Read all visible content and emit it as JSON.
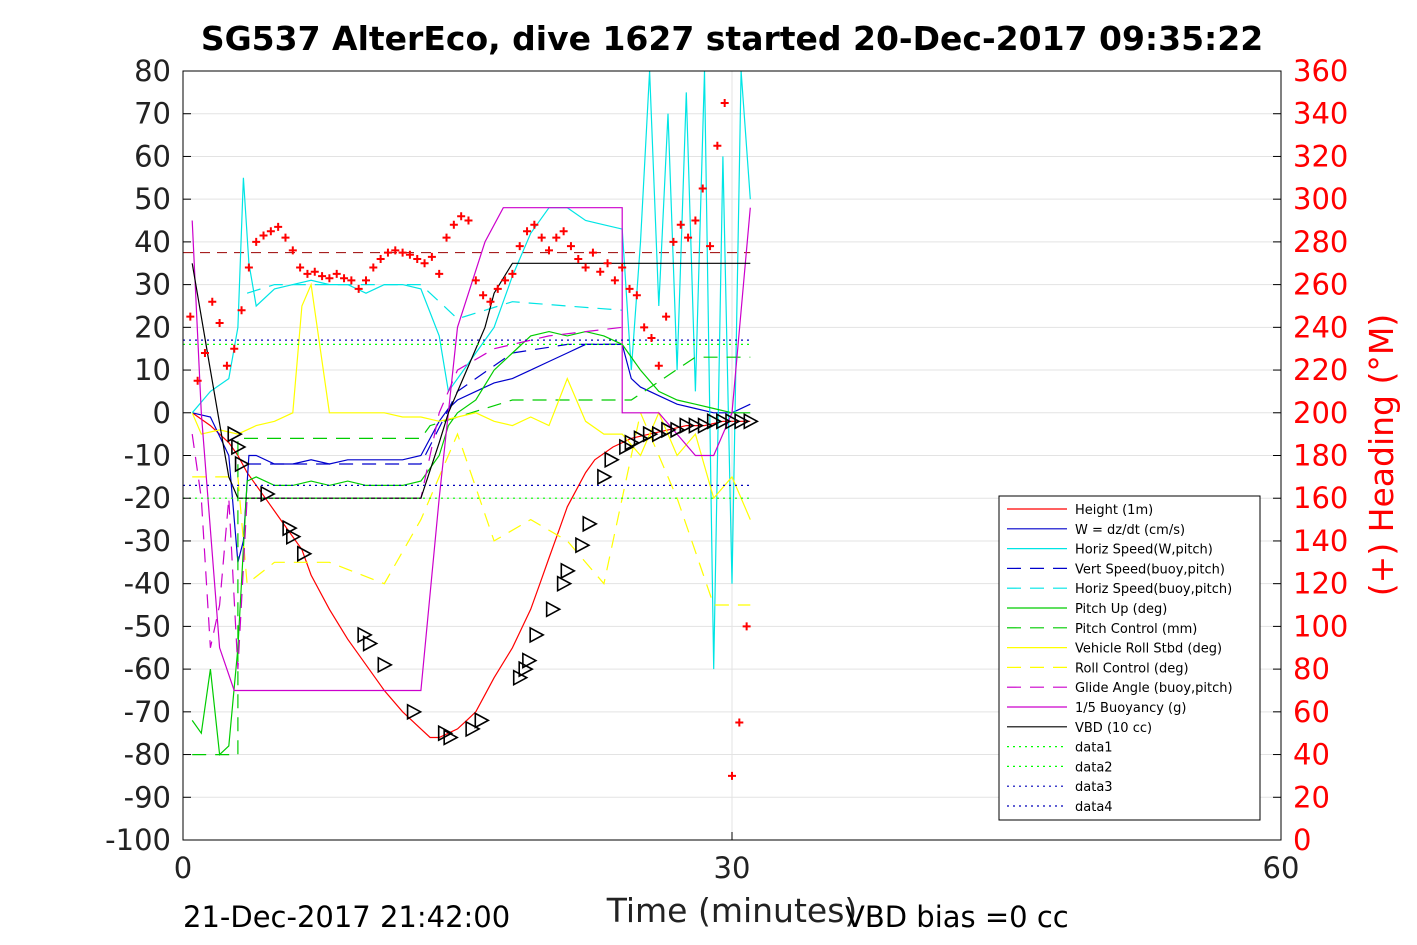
{
  "chart_data": {
    "type": "line",
    "title": "SG537 AlterEco, dive 1627 started 20-Dec-2017 09:35:22",
    "xlabel": "Time (minutes)",
    "ylabel_right": "(+) Heading (°M)",
    "footer_left": "21-Dec-2017 21:42:00",
    "footer_right": "VBD bias =0 cc",
    "xlim": [
      0,
      60
    ],
    "ylim": [
      -100,
      80
    ],
    "y2lim": [
      0,
      360
    ],
    "x_ticks": [
      "0",
      "30",
      "60"
    ],
    "y_ticks": [
      "80",
      "70",
      "60",
      "50",
      "40",
      "30",
      "20",
      "10",
      "0",
      "-10",
      "-20",
      "-30",
      "-40",
      "-50",
      "-60",
      "-70",
      "-80",
      "-90",
      "-100"
    ],
    "y2_ticks": [
      "360",
      "340",
      "320",
      "300",
      "280",
      "260",
      "240",
      "220",
      "200",
      "180",
      "160",
      "140",
      "120",
      "100",
      "80",
      "60",
      "40",
      "20",
      "0"
    ],
    "grid": true,
    "legend_position": "bottom-right",
    "colors": {
      "red": "#ff0000",
      "blue": "#0000cc",
      "cyan": "#00e5e5",
      "green": "#00cc00",
      "yellow": "#ffff00",
      "magenta": "#cc00cc",
      "black": "#000000",
      "lightgreen": "#00ff00",
      "navy": "#0000bb",
      "darkred": "#990000"
    },
    "legend": [
      {
        "label": "Height (1m)",
        "color": "#ff0000",
        "style": "solid"
      },
      {
        "label": "W = dz/dt (cm/s)",
        "color": "#0000cc",
        "style": "solid"
      },
      {
        "label": "Horiz Speed(W,pitch)",
        "color": "#00e5e5",
        "style": "solid"
      },
      {
        "label": "Vert Speed(buoy,pitch)",
        "color": "#0000cc",
        "style": "dashed"
      },
      {
        "label": "Horiz Speed(buoy,pitch)",
        "color": "#00e5e5",
        "style": "dashed"
      },
      {
        "label": "Pitch Up (deg)",
        "color": "#00cc00",
        "style": "solid"
      },
      {
        "label": "Pitch Control (mm)",
        "color": "#00cc00",
        "style": "dashed"
      },
      {
        "label": "Vehicle Roll Stbd (deg)",
        "color": "#ffff00",
        "style": "solid"
      },
      {
        "label": "Roll Control (deg)",
        "color": "#ffff00",
        "style": "dashed"
      },
      {
        "label": "Glide Angle (buoy,pitch)",
        "color": "#cc00cc",
        "style": "dashed"
      },
      {
        "label": "1/5 Buoyancy (g)",
        "color": "#cc00cc",
        "style": "solid"
      },
      {
        "label": "VBD (10 cc)",
        "color": "#000000",
        "style": "solid"
      },
      {
        "label": "data1",
        "color": "#00ff00",
        "style": "dotted"
      },
      {
        "label": "data2",
        "color": "#00ff00",
        "style": "dotted"
      },
      {
        "label": "data3",
        "color": "#0000bb",
        "style": "dotted"
      },
      {
        "label": "data4",
        "color": "#0000bb",
        "style": "dotted"
      }
    ],
    "series": [
      {
        "name": "Height (1m)",
        "color": "#ff0000",
        "style": "solid",
        "x": [
          0.5,
          1.5,
          2.5,
          3.0,
          3.5,
          4.5,
          5.5,
          6.5,
          7.0,
          8.0,
          9.0,
          10.0,
          11.0,
          12.0,
          13.0,
          13.5,
          14.0,
          14.5,
          15.0,
          15.5,
          16.0,
          16.5,
          17.0,
          18.0,
          19.0,
          19.5,
          20.0,
          20.5,
          21.0,
          22.0,
          22.5,
          23.5,
          24.5,
          25.5,
          26.5,
          27.5,
          28.5,
          29.5,
          30.5,
          31.0
        ],
        "y": [
          0,
          -3,
          -7,
          -10,
          -14,
          -20,
          -26,
          -32,
          -38,
          -46,
          -53,
          -59,
          -65,
          -70,
          -74,
          -76,
          -76,
          -75,
          -74,
          -72,
          -70,
          -66,
          -62,
          -55,
          -46,
          -40,
          -34,
          -28,
          -22,
          -14,
          -11,
          -8,
          -6,
          -5,
          -4,
          -3,
          -3,
          -2,
          -2,
          -2
        ]
      },
      {
        "name": "W = dz/dt (cm/s)",
        "color": "#0000cc",
        "style": "solid",
        "x": [
          0.5,
          1.5,
          2.5,
          3.0,
          3.3,
          3.6,
          4.0,
          5.0,
          6.0,
          7.0,
          8.0,
          9.0,
          10.0,
          11.0,
          12.0,
          13.0,
          14.0,
          14.5,
          15.0,
          16.0,
          17.0,
          18.0,
          19.0,
          20.0,
          21.0,
          22.0,
          23.0,
          24.0,
          24.5,
          25.0,
          26.0,
          27.0,
          28.0,
          29.0,
          30.0,
          31.0
        ],
        "y": [
          0,
          -1,
          -10,
          -35,
          -30,
          -10,
          -10,
          -12,
          -12,
          -11,
          -12,
          -11,
          -11,
          -11,
          -11,
          -10,
          -2,
          1,
          3,
          5,
          7,
          8,
          10,
          12,
          14,
          16,
          16,
          16,
          8,
          6,
          4,
          2,
          1,
          0,
          0,
          2
        ]
      },
      {
        "name": "Horiz Speed(W,pitch)",
        "color": "#00e5e5",
        "style": "solid",
        "x": [
          0.5,
          1.5,
          2.5,
          3.0,
          3.3,
          3.6,
          4.0,
          5.0,
          6.0,
          7.0,
          8.0,
          9.0,
          10.0,
          11.0,
          12.0,
          13.0,
          14.0,
          14.5,
          15.0,
          16.0,
          17.0,
          18.0,
          19.0,
          20.0,
          21.0,
          22.0,
          23.0,
          24.0,
          24.5,
          25.0,
          25.5,
          26.0,
          26.5,
          27.0,
          27.5,
          28.0,
          28.5,
          29.0,
          29.5,
          30.0,
          30.5,
          31.0
        ],
        "y": [
          0,
          5,
          8,
          20,
          55,
          35,
          25,
          29,
          30,
          31,
          30,
          30,
          28,
          30,
          30,
          29,
          18,
          5,
          8,
          14,
          20,
          32,
          42,
          48,
          48,
          45,
          44,
          43,
          10,
          40,
          80,
          25,
          70,
          10,
          75,
          5,
          80,
          -60,
          60,
          -40,
          80,
          50
        ]
      },
      {
        "name": "Vert Speed(buoy,pitch)",
        "color": "#0000cc",
        "style": "dashed",
        "x": [
          3.5,
          5.0,
          8.0,
          11.0,
          13.0,
          15.0,
          18.0,
          21.0,
          24.0
        ],
        "y": [
          -12,
          -12,
          -12,
          -12,
          -12,
          5,
          14,
          16,
          16
        ]
      },
      {
        "name": "Horiz Speed(buoy,pitch)",
        "color": "#00e5e5",
        "style": "dashed",
        "x": [
          3.5,
          5.0,
          8.0,
          11.0,
          13.0,
          15.0,
          18.0,
          21.0,
          24.0
        ],
        "y": [
          28,
          30,
          30,
          30,
          30,
          22,
          26,
          25,
          24
        ]
      },
      {
        "name": "Pitch Up (deg)",
        "color": "#00cc00",
        "style": "solid",
        "x": [
          0.5,
          1.0,
          1.5,
          2.0,
          2.5,
          3.0,
          3.5,
          4.0,
          5.0,
          6.0,
          7.0,
          8.0,
          9.0,
          10.0,
          11.0,
          12.0,
          13.0,
          14.0,
          14.5,
          15.0,
          16.0,
          17.0,
          18.0,
          19.0,
          20.0,
          21.0,
          22.0,
          23.0,
          24.0,
          25.0,
          26.0,
          27.0,
          28.0,
          29.0,
          30.0,
          31.0
        ],
        "y": [
          -72,
          -75,
          -60,
          -80,
          -78,
          -55,
          -16,
          -15,
          -17,
          -17,
          -16,
          -17,
          -16,
          -17,
          -17,
          -17,
          -16,
          -10,
          -3,
          0,
          3,
          10,
          14,
          18,
          19,
          18,
          19,
          18,
          16,
          10,
          5,
          3,
          2,
          1,
          0,
          0
        ]
      },
      {
        "name": "Pitch Control (mm)",
        "color": "#00cc00",
        "style": "dashed",
        "x": [
          0.5,
          3.0,
          3.0,
          13.0,
          13.5,
          18.0,
          24.0,
          24.5,
          28.0,
          31.0
        ],
        "y": [
          -80,
          -80,
          -6,
          -6,
          -3,
          3,
          3,
          3,
          13,
          13
        ]
      },
      {
        "name": "Vehicle Roll Stbd (deg)",
        "color": "#ffff00",
        "style": "solid",
        "x": [
          0.5,
          1.0,
          2.0,
          3.0,
          4.0,
          5.0,
          6.0,
          6.5,
          7.0,
          8.0,
          9.0,
          10.0,
          11.0,
          12.0,
          13.0,
          14.0,
          15.0,
          16.0,
          17.0,
          18.0,
          19.0,
          20.0,
          21.0,
          22.0,
          23.0,
          24.0,
          25.0,
          26.0,
          27.0,
          28.0,
          29.0,
          30.0,
          31.0
        ],
        "y": [
          0,
          -5,
          -4,
          -5,
          -3,
          -2,
          0,
          25,
          30,
          0,
          0,
          0,
          0,
          -1,
          -1,
          -2,
          -1,
          0,
          -2,
          -3,
          -1,
          -3,
          8,
          -2,
          -5,
          -5,
          -10,
          0,
          -10,
          -5,
          -20,
          -15,
          -25
        ]
      },
      {
        "name": "Roll Control (deg)",
        "color": "#ffff00",
        "style": "dashed",
        "x": [
          0.5,
          3.0,
          3.5,
          5.0,
          8.0,
          11.0,
          13.0,
          15.0,
          17.0,
          19.0,
          21.0,
          23.0,
          25.0,
          27.0,
          29.0,
          31.0
        ],
        "y": [
          -15,
          -15,
          -40,
          -35,
          -35,
          -40,
          -25,
          -5,
          -30,
          -25,
          -30,
          -40,
          0,
          -20,
          -45,
          -45
        ]
      },
      {
        "name": "Glide Angle (buoy,pitch)",
        "color": "#cc00cc",
        "style": "dashed",
        "x": [
          0.5,
          1.0,
          1.5,
          2.0,
          2.5,
          3.0,
          3.5,
          4.0,
          13.0,
          14.0,
          15.0,
          17.0,
          20.0,
          24.0
        ],
        "y": [
          -5,
          -20,
          -55,
          -45,
          -20,
          -60,
          -20,
          -20,
          -20,
          0,
          10,
          15,
          18,
          20
        ]
      },
      {
        "name": "1/5 Buoyancy (g)",
        "color": "#cc00cc",
        "style": "solid",
        "x": [
          0.5,
          1.0,
          2.0,
          2.8,
          3.0,
          3.5,
          4.0,
          12.0,
          13.0,
          14.0,
          15.0,
          16.5,
          17.5,
          18.0,
          21.0,
          24.0,
          24.0,
          25.5,
          26.0,
          28.0,
          29.0,
          30.0,
          31.0
        ],
        "y": [
          45,
          0,
          -55,
          -65,
          -65,
          -65,
          -65,
          -65,
          -65,
          -20,
          20,
          40,
          48,
          48,
          48,
          48,
          0,
          0,
          0,
          -10,
          -10,
          0,
          48
        ]
      },
      {
        "name": "VBD (10 cc)",
        "color": "#000000",
        "style": "solid",
        "x": [
          0.5,
          1.5,
          2.5,
          3.0,
          3.5,
          4.0,
          13.0,
          14.0,
          14.5,
          15.5,
          16.5,
          17.0,
          18.0,
          20.0,
          24.0,
          28.0,
          31.0
        ],
        "y": [
          35,
          10,
          -15,
          -20,
          -20,
          -20,
          -20,
          -7,
          0,
          10,
          20,
          28,
          35,
          35,
          35,
          35,
          35
        ]
      },
      {
        "name": "data1",
        "color": "#00ff00",
        "style": "dotted",
        "x": [
          0,
          31
        ],
        "y": [
          -20,
          -20
        ]
      },
      {
        "name": "data2",
        "color": "#00ff00",
        "style": "dotted",
        "x": [
          0,
          31
        ],
        "y": [
          16,
          16
        ]
      },
      {
        "name": "data3",
        "color": "#0000bb",
        "style": "dotted",
        "x": [
          0,
          31
        ],
        "y": [
          -17,
          -17
        ]
      },
      {
        "name": "data4",
        "color": "#0000bb",
        "style": "dotted",
        "x": [
          0,
          31
        ],
        "y": [
          17,
          17
        ]
      }
    ],
    "heading_mean_line": {
      "y2": 275,
      "x": [
        0,
        31
      ],
      "color": "#990000",
      "style": "dashed"
    },
    "heading_points": {
      "color": "#ff0000",
      "x": [
        0.4,
        0.8,
        1.2,
        1.6,
        2.0,
        2.4,
        2.8,
        3.2,
        3.6,
        4.0,
        4.4,
        4.8,
        5.2,
        5.6,
        6.0,
        6.4,
        6.8,
        7.2,
        7.6,
        8.0,
        8.4,
        8.8,
        9.2,
        9.6,
        10.0,
        10.4,
        10.8,
        11.2,
        11.6,
        12.0,
        12.4,
        12.8,
        13.2,
        13.6,
        14.0,
        14.4,
        14.8,
        15.2,
        15.6,
        16.0,
        16.4,
        16.8,
        17.2,
        17.6,
        18.0,
        18.4,
        18.8,
        19.2,
        19.6,
        20.0,
        20.4,
        20.8,
        21.2,
        21.6,
        22.0,
        22.4,
        22.8,
        23.2,
        23.6,
        24.0,
        24.4,
        24.8,
        25.2,
        25.6,
        26.0,
        26.4,
        26.8,
        27.2,
        27.6,
        28.0,
        28.4,
        28.8,
        29.2,
        29.6,
        30.0,
        30.4,
        30.8
      ],
      "y": [
        245,
        215,
        228,
        252,
        242,
        222,
        230,
        248,
        268,
        280,
        283,
        285,
        287,
        282,
        276,
        268,
        265,
        266,
        264,
        263,
        265,
        263,
        262,
        258,
        262,
        268,
        272,
        275,
        276,
        275,
        274,
        272,
        270,
        273,
        265,
        282,
        288,
        292,
        290,
        262,
        255,
        252,
        258,
        262,
        265,
        278,
        285,
        288,
        282,
        276,
        282,
        285,
        278,
        272,
        268,
        275,
        266,
        270,
        262,
        268,
        258,
        255,
        240,
        235,
        222,
        245,
        280,
        288,
        282,
        290,
        305,
        278,
        325,
        345,
        30,
        55,
        100
      ]
    },
    "dive_markers": {
      "color": "#000000",
      "x": [
        2.8,
        3.0,
        3.2,
        4.6,
        5.8,
        6.0,
        6.6,
        9.9,
        10.2,
        11.0,
        12.6,
        14.3,
        14.6,
        15.8,
        16.3,
        18.4,
        18.7,
        18.9,
        19.3,
        20.2,
        20.8,
        21.0,
        21.8,
        22.2,
        23.0,
        23.4,
        24.2,
        24.5,
        25.0,
        25.5,
        26.0,
        26.5,
        27.0,
        27.5,
        28.0,
        28.5,
        29.0,
        29.5,
        30.0,
        30.5,
        31.0
      ],
      "y": [
        -5,
        -8,
        -12,
        -19,
        -27,
        -29,
        -33,
        -52,
        -54,
        -59,
        -70,
        -75,
        -76,
        -74,
        -72,
        -62,
        -60,
        -58,
        -52,
        -46,
        -40,
        -37,
        -31,
        -26,
        -15,
        -11,
        -8,
        -7,
        -6,
        -5,
        -5,
        -4,
        -4,
        -3,
        -3,
        -3,
        -2,
        -2,
        -2,
        -2,
        -2
      ]
    }
  }
}
